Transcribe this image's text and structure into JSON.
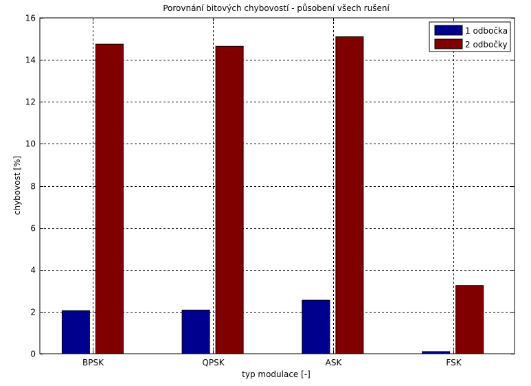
{
  "chart_data": {
    "type": "bar",
    "title": "Porovnání bitových chybovostí - působení všech rušení",
    "xlabel": "typ modulace [-]",
    "ylabel": "chybovost [%]",
    "categories": [
      "BPSK",
      "QPSK",
      "ASK",
      "FSK"
    ],
    "series": [
      {
        "name": "1 odbočka",
        "color": "#00008f",
        "values": [
          2.05,
          2.08,
          2.55,
          0.1
        ]
      },
      {
        "name": "2 odbočky",
        "color": "#800000",
        "values": [
          14.75,
          14.65,
          15.1,
          3.25
        ]
      }
    ],
    "ylim": [
      0,
      16
    ],
    "yticks": [
      0,
      2,
      4,
      6,
      8,
      10,
      12,
      14,
      16
    ],
    "grid": true,
    "legend_position": "top-right"
  }
}
